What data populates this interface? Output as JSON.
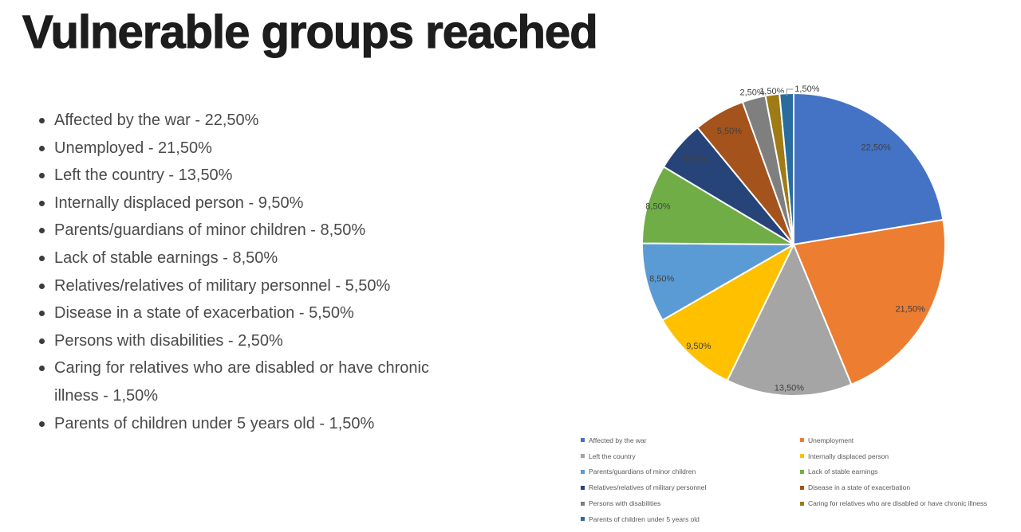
{
  "title": "Vulnerable groups reached",
  "bullets": [
    "Affected by the war - 22,50%",
    "Unemployed - 21,50%",
    "Left the country - 13,50%",
    "Internally displaced person - 9,50%",
    "Parents/guardians of minor children - 8,50%",
    "Lack of stable earnings - 8,50%",
    "Relatives/relatives of military personnel - 5,50%",
    "Disease in a state of exacerbation - 5,50%",
    "Persons with disabilities - 2,50%",
    "Caring for relatives who are disabled or have chronic illness - 1,50%",
    "Parents of children under 5 years old - 1,50%"
  ],
  "chart_data": {
    "type": "pie",
    "title": "",
    "legend_position": "bottom-two-columns",
    "start_angle_deg": 0,
    "direction": "clockwise",
    "slices": [
      {
        "label": "Affected by the war",
        "value": 22.5,
        "display": "22,50%",
        "color": "#4472C4",
        "placement": "inside",
        "label_r": 0.84
      },
      {
        "label": "Unemployment",
        "value": 21.5,
        "display": "21,50%",
        "color": "#ED7D31",
        "placement": "inside",
        "label_r": 0.88
      },
      {
        "label": "Left the country",
        "value": 13.5,
        "display": "13,50%",
        "color": "#A5A5A5",
        "placement": "inside",
        "label_r": 0.95
      },
      {
        "label": "Internally displaced person",
        "value": 9.5,
        "display": "9,50%",
        "color": "#FFC000",
        "placement": "inside",
        "label_r": 0.92
      },
      {
        "label": "Parents/guardians of minor children",
        "value": 8.5,
        "display": "8,50%",
        "color": "#5B9BD5",
        "placement": "inside",
        "label_r": 0.9
      },
      {
        "label": "Lack of stable earnings",
        "value": 8.5,
        "display": "8,50%",
        "color": "#70AD47",
        "placement": "inside",
        "label_r": 0.93
      },
      {
        "label": "Relatives/relatives of military personnel",
        "value": 5.5,
        "display": "5,50%",
        "color": "#264478",
        "placement": "inside",
        "label_r": 0.86
      },
      {
        "label": "Disease in a state of exacerbation",
        "value": 5.5,
        "display": "5,50%",
        "color": "#A5531C",
        "placement": "inside",
        "label_r": 0.86
      },
      {
        "label": "Persons with disabilities",
        "value": 2.5,
        "display": "2,50%",
        "color": "#7F7F7F",
        "placement": "outside",
        "label_r": 1.04
      },
      {
        "label": "Caring for relatives who are disabled or have chronic illness",
        "value": 1.5,
        "display": "1,50%",
        "color": "#9E7B14",
        "placement": "outside",
        "label_r": 1.02
      },
      {
        "label": "Parents of children under 5 years old",
        "value": 1.5,
        "display": "1,50%",
        "color": "#2A6C9E",
        "placement": "outside-leader",
        "label_r": 1.0
      }
    ],
    "legend_columns": [
      [
        0,
        2,
        4,
        6,
        8,
        10
      ],
      [
        1,
        3,
        5,
        7,
        9
      ]
    ],
    "label_color": "#404040",
    "leader_line_color": "#9b9b9b",
    "slice_separator_color": "#ffffff"
  }
}
